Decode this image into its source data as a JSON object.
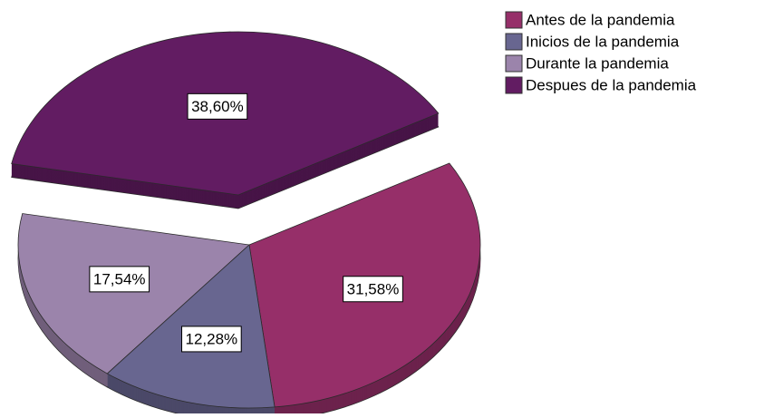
{
  "chart_data": {
    "type": "pie",
    "categories": [
      "Antes de la pandemia",
      "Inicios de la pandemia",
      "Durante la pandemia",
      "Despues de la pandemia"
    ],
    "values": [
      31.58,
      12.28,
      17.54,
      38.6
    ],
    "value_labels": [
      "31,58%",
      "12,28%",
      "17,54%",
      "38,60%"
    ],
    "colors": [
      "#962f69",
      "#686690",
      "#9b84ab",
      "#621c62"
    ],
    "exploded": [
      false,
      false,
      false,
      true
    ],
    "legend": "top-right"
  }
}
